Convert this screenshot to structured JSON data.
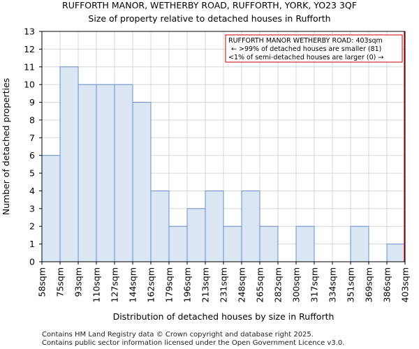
{
  "chart_data": {
    "type": "bar",
    "title_lines": [
      "RUFFORTH MANOR, WETHERBY ROAD, RUFFORTH, YORK, YO23 3QF",
      "Size of property relative to detached houses in Rufforth"
    ],
    "xlabel": "Distribution of detached houses by size in Rufforth",
    "ylabel": "Number of detached properties",
    "x_tick_labels": [
      "58sqm",
      "75sqm",
      "93sqm",
      "110sqm",
      "127sqm",
      "144sqm",
      "162sqm",
      "179sqm",
      "196sqm",
      "213sqm",
      "231sqm",
      "248sqm",
      "265sqm",
      "282sqm",
      "300sqm",
      "317sqm",
      "334sqm",
      "351sqm",
      "369sqm",
      "386sqm",
      "403sqm"
    ],
    "values": [
      6,
      11,
      10,
      10,
      10,
      9,
      4,
      2,
      3,
      4,
      2,
      4,
      2,
      0,
      2,
      0,
      0,
      2,
      0,
      1
    ],
    "ylim": [
      0,
      13
    ],
    "y_ticks": [
      0,
      1,
      2,
      3,
      4,
      5,
      6,
      7,
      8,
      9,
      10,
      11,
      12,
      13
    ],
    "grid": true,
    "bar_color": "#dae6f4",
    "bar_edge_color": "#6a8fc7",
    "marker_color": "#cc0000",
    "marker": {
      "label": "RUFFORTH MANOR WETHERBY ROAD: 403sqm",
      "at_tick_index": 20
    },
    "annotation_lines": [
      "RUFFORTH MANOR WETHERBY ROAD: 403sqm",
      "← >99% of detached houses are smaller (81)",
      "<1% of semi-detached houses are larger (0) →"
    ],
    "footer_lines": [
      "Contains HM Land Registry data © Crown copyright and database right 2025.",
      "Contains public sector information licensed under the Open Government Licence v3.0."
    ]
  }
}
